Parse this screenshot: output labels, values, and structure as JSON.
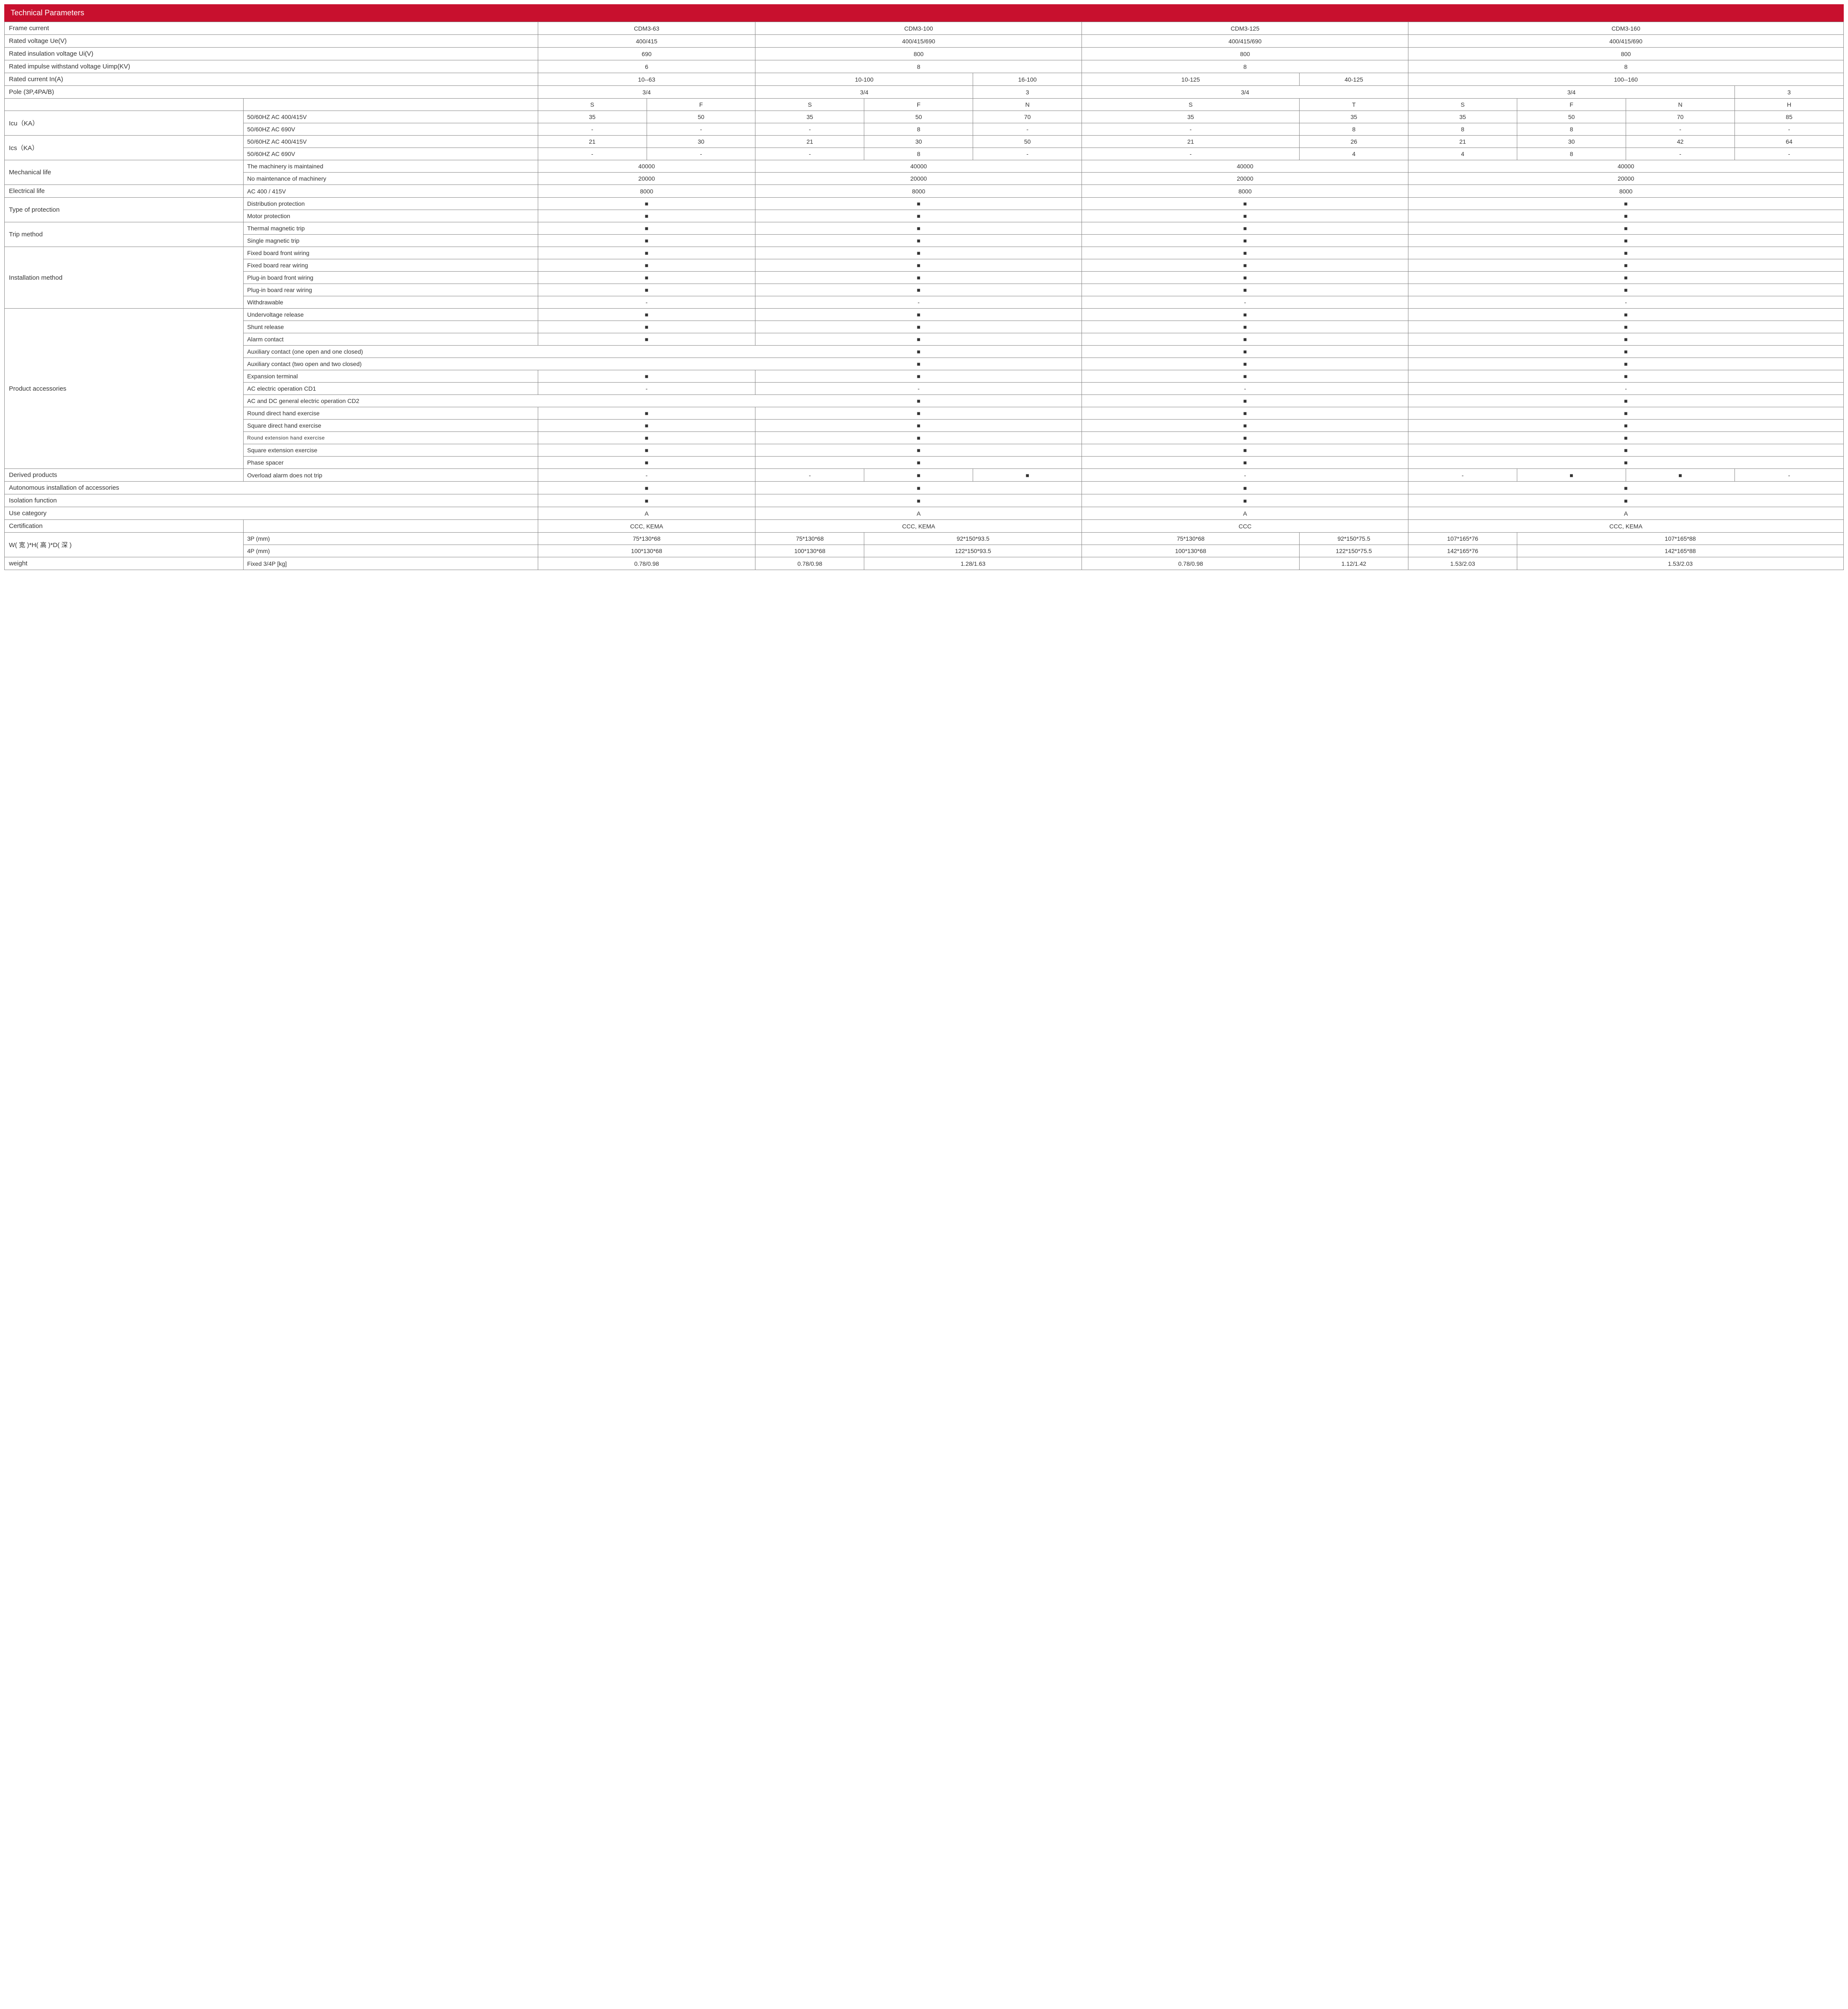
{
  "title": "Technical Parameters",
  "mark": "■",
  "dash": "-",
  "columns": [
    "CDM3-63",
    "CDM3-100",
    "CDM3-125",
    "CDM3-160"
  ],
  "frame_current": "Frame current",
  "rated_voltage": {
    "label": "Rated voltage Ue(V)",
    "v": [
      "400/415",
      "400/415/690",
      "400/415/690",
      "400/415/690"
    ]
  },
  "rated_insulation": {
    "label": "Rated insulation voltage Ui(V)",
    "v": [
      "690",
      "800",
      "800",
      "800"
    ]
  },
  "rated_impulse": {
    "label": "Rated impulse withstand voltage Uimp(KV)",
    "v": [
      "6",
      "8",
      "8",
      "8"
    ]
  },
  "rated_current": {
    "label": "Rated current In(A)",
    "v63": "10--63",
    "v100a": "10-100",
    "v100b": "16-100",
    "v125a": "10-125",
    "v125b": "40-125",
    "v160": "100--160"
  },
  "pole": {
    "label": "Pole (3P,4PA/B)",
    "v63": "3/4",
    "v100a": "3/4",
    "v100b": "3",
    "v125": "3/4",
    "v160a": "3/4",
    "v160b": "3"
  },
  "sub_headers": {
    "c63": [
      "S",
      "F"
    ],
    "c100": [
      "S",
      "F",
      "N"
    ],
    "c125": [
      "S",
      "T"
    ],
    "c160": [
      "S",
      "F",
      "N",
      "H"
    ]
  },
  "icu": {
    "label": "Icu（KA）",
    "r1_label": "50/60HZ  AC 400/415V",
    "r1": [
      "35",
      "50",
      "35",
      "50",
      "70",
      "35",
      "35",
      "35",
      "50",
      "70",
      "85"
    ],
    "r2_label": "50/60HZ  AC 690V",
    "r2": [
      "-",
      "-",
      "-",
      "8",
      "-",
      "-",
      "8",
      "8",
      "8",
      "-",
      "-"
    ]
  },
  "ics": {
    "label": "Ics（KA）",
    "r1_label": "50/60HZ  AC 400/415V",
    "r1": [
      "21",
      "30",
      "21",
      "30",
      "50",
      "21",
      "26",
      "21",
      "30",
      "42",
      "64"
    ],
    "r2_label": "50/60HZ  AC 690V",
    "r2": [
      "-",
      "-",
      "-",
      "8",
      "-",
      "-",
      "4",
      "4",
      "8",
      "-",
      "-"
    ]
  },
  "mech_life": {
    "label": "Mechanical life",
    "r1_label": "The machinery is maintained",
    "r1": [
      "40000",
      "40000",
      "40000",
      "40000"
    ],
    "r2_label": "No maintenance of machinery",
    "r2": [
      "20000",
      "20000",
      "20000",
      "20000"
    ]
  },
  "elec_life": {
    "label": "Electrical life",
    "sub": "AC 400 / 415V",
    "v": [
      "8000",
      "8000",
      "8000",
      "8000"
    ]
  },
  "type_prot": {
    "label": "Type of protection",
    "r1": "Distribution protection",
    "r2": "Motor protection"
  },
  "trip": {
    "label": "Trip method",
    "r1": "Thermal magnetic trip",
    "r2": "Single magnetic trip"
  },
  "install": {
    "label": "Installation method",
    "rows": [
      "Fixed board front wiring",
      "Fixed board rear wiring",
      "Plug-in board front wiring",
      "Plug-in board rear wiring",
      "Withdrawable"
    ]
  },
  "accessories": {
    "label": "Product accessories",
    "rows": [
      "Undervoltage release",
      "Shunt release",
      "Alarm contact",
      "Auxiliary contact (one open and one closed)",
      "Auxiliary contact (two open and two closed)",
      "Expansion terminal",
      "AC electric operation CD1",
      "AC and DC general electric operation CD2",
      "Round direct hand exercise",
      "Square direct hand exercise",
      "Round extension hand exercise",
      "Square extension exercise",
      "Phase spacer"
    ]
  },
  "derived": {
    "label": "Derived products",
    "sub": "Overload alarm does not trip",
    "v63": "-",
    "v100": [
      "-",
      "■",
      "■"
    ],
    "v125": "-",
    "v160": [
      "-",
      "■",
      "■",
      "-"
    ]
  },
  "auto_install": "Autonomous installation of accessories",
  "isolation": "Isolation function",
  "use_cat": {
    "label": "Use category",
    "v": [
      "A",
      "A",
      "A",
      "A"
    ]
  },
  "cert": {
    "label": "Certification",
    "v": [
      "CCC, KEMA",
      "CCC, KEMA",
      "CCC",
      "CCC, KEMA"
    ]
  },
  "dims": {
    "label": "W( 宽 )*H( 高 )*D( 深 )",
    "r3p": {
      "label": "3P (mm)",
      "v63": "75*130*68",
      "v100a": "75*130*68",
      "v100b": "92*150*93.5",
      "v125a": "75*130*68",
      "v125b": "92*150*75.5",
      "v160a": "107*165*76",
      "v160b": "107*165*88"
    },
    "r4p": {
      "label": "4P (mm)",
      "v63": "100*130*68",
      "v100a": "100*130*68",
      "v100b": "122*150*93.5",
      "v125a": "100*130*68",
      "v125b": "122*150*75.5",
      "v160a": "142*165*76",
      "v160b": "142*165*88"
    }
  },
  "weight": {
    "label": "weight",
    "sub": "Fixed  3/4P [kg]",
    "v63": "0.78/0.98",
    "v100a": "0.78/0.98",
    "v100b": "1.28/1.63",
    "v125a": "0.78/0.98",
    "v125b": "1.12/1.42",
    "v160a": "1.53/2.03",
    "v160b": "1.53/2.03"
  }
}
